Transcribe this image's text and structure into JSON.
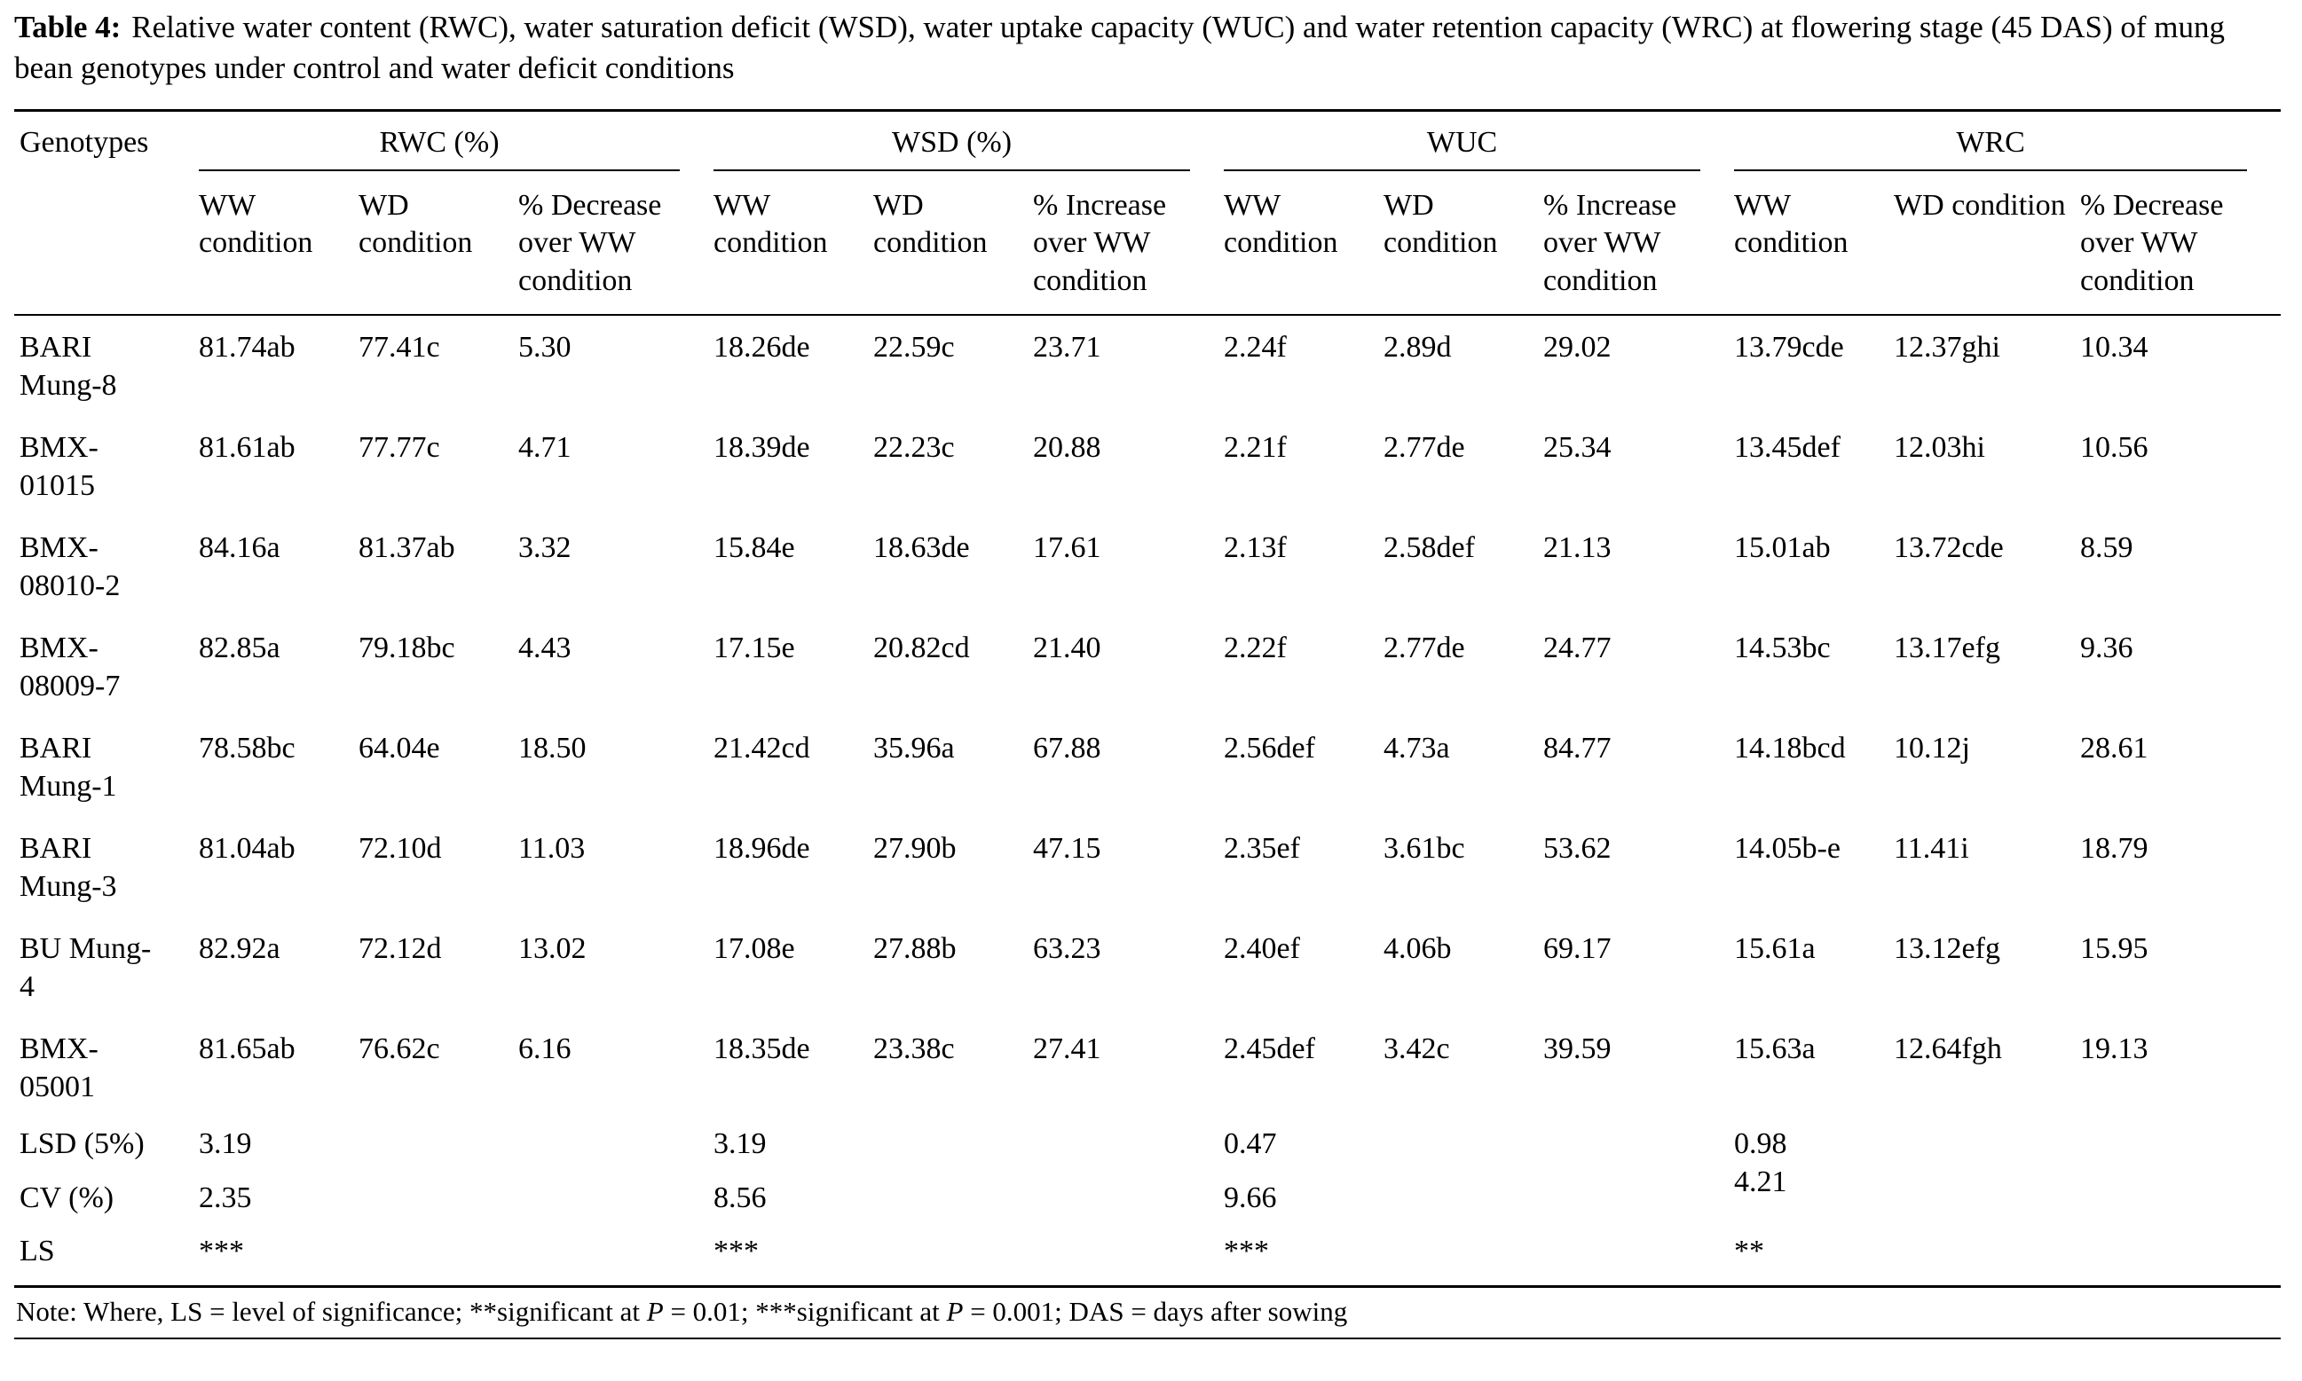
{
  "caption": {
    "label": "Table 4:",
    "text": "Relative water content (RWC), water saturation deficit (WSD), water uptake capacity (WUC) and water retention capacity (WRC) at flowering stage (45 DAS) of mung bean genotypes under control and water deficit conditions"
  },
  "table": {
    "col0_header": "Genotypes",
    "groups": [
      {
        "label": "RWC (%)",
        "subheaders": [
          "WW condition",
          "WD condition",
          "% Decrease over WW condition"
        ]
      },
      {
        "label": "WSD (%)",
        "subheaders": [
          "WW condition",
          "WD condition",
          "% Increase over WW condition"
        ]
      },
      {
        "label": "WUC",
        "subheaders": [
          "WW condition",
          "WD condition",
          "% Increase over WW condition"
        ]
      },
      {
        "label": "WRC",
        "subheaders": [
          "WW condition",
          "WD condition",
          "% Decrease over WW condition"
        ]
      }
    ],
    "rows": [
      {
        "genotype": "BARI Mung-8",
        "values": [
          "81.74ab",
          "77.41c",
          "5.30",
          "18.26de",
          "22.59c",
          "23.71",
          "2.24f",
          "2.89d",
          "29.02",
          "13.79cde",
          "12.37ghi",
          "10.34"
        ]
      },
      {
        "genotype": "BMX-01015",
        "values": [
          "81.61ab",
          "77.77c",
          "4.71",
          "18.39de",
          "22.23c",
          "20.88",
          "2.21f",
          "2.77de",
          "25.34",
          "13.45def",
          "12.03hi",
          "10.56"
        ]
      },
      {
        "genotype": "BMX-08010-2",
        "values": [
          "84.16a",
          "81.37ab",
          "3.32",
          "15.84e",
          "18.63de",
          "17.61",
          "2.13f",
          "2.58def",
          "21.13",
          "15.01ab",
          "13.72cde",
          "8.59"
        ]
      },
      {
        "genotype": "BMX-08009-7",
        "values": [
          "82.85a",
          "79.18bc",
          "4.43",
          "17.15e",
          "20.82cd",
          "21.40",
          "2.22f",
          "2.77de",
          "24.77",
          "14.53bc",
          "13.17efg",
          "9.36"
        ]
      },
      {
        "genotype": "BARI Mung-1",
        "values": [
          "78.58bc",
          "64.04e",
          "18.50",
          "21.42cd",
          "35.96a",
          "67.88",
          "2.56def",
          "4.73a",
          "84.77",
          "14.18bcd",
          "10.12j",
          "28.61"
        ]
      },
      {
        "genotype": "BARI Mung-3",
        "values": [
          "81.04ab",
          "72.10d",
          "11.03",
          "18.96de",
          "27.90b",
          "47.15",
          "2.35ef",
          "3.61bc",
          "53.62",
          "14.05b-e",
          "11.41i",
          "18.79"
        ]
      },
      {
        "genotype": "BU Mung-4",
        "values": [
          "82.92a",
          "72.12d",
          "13.02",
          "17.08e",
          "27.88b",
          "63.23",
          "2.40ef",
          "4.06b",
          "69.17",
          "15.61a",
          "13.12efg",
          "15.95"
        ]
      },
      {
        "genotype": "BMX-05001",
        "values": [
          "81.65ab",
          "76.62c",
          "6.16",
          "18.35de",
          "23.38c",
          "27.41",
          "2.45def",
          "3.42c",
          "39.59",
          "15.63a",
          "12.64fgh",
          "19.13"
        ]
      }
    ],
    "summary_rows": [
      {
        "label": "LSD (5%)",
        "values": [
          "3.19",
          "",
          "",
          "3.19",
          "",
          "",
          "0.47",
          "",
          "",
          "0.98",
          "",
          ""
        ]
      },
      {
        "label": "CV (%)",
        "values": [
          "2.35",
          "",
          "",
          "8.56",
          "",
          "",
          "9.66",
          "",
          "",
          "4.21",
          "",
          ""
        ]
      },
      {
        "label": "LS",
        "values": [
          "***",
          "",
          "",
          "***",
          "",
          "",
          "***",
          "",
          "",
          "**",
          "",
          ""
        ]
      }
    ]
  },
  "note": {
    "segments": [
      {
        "text": "Note: Where, LS = level of significance; **significant at "
      },
      {
        "text": "P",
        "italic": true
      },
      {
        "text": " = 0.01; ***significant at "
      },
      {
        "text": "P",
        "italic": true
      },
      {
        "text": " = 0.001; DAS = days after sowing"
      }
    ]
  }
}
